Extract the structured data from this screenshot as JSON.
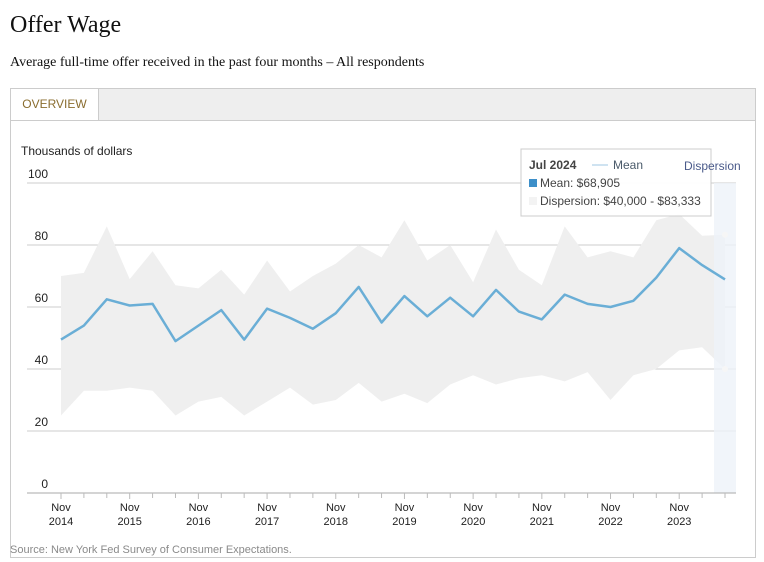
{
  "page": {
    "title": "Offer Wage",
    "subtitle": "Average full-time offer received in the past four months – All respondents",
    "tab_label": "OVERVIEW",
    "source": "Source: New York Fed Survey of Consumer Expectations."
  },
  "tooltip": {
    "date": "Jul 2024",
    "legend_mean": "Mean",
    "legend_dispersion": "Dispersion",
    "mean_text": "Mean: $68,905",
    "dispersion_text": "Dispersion: $40,000 - $83,333"
  },
  "colors": {
    "mean_line": "#6aaed6",
    "band_fill": "#efefef",
    "gridline": "#cccccc",
    "highlight": "#eef3f9"
  },
  "chart_data": {
    "type": "line",
    "title": "",
    "ylabel": "Thousands of dollars",
    "ylim": [
      0,
      100
    ],
    "yticks": [
      0,
      20,
      40,
      60,
      80,
      100
    ],
    "x_tick_labels": [
      [
        "Nov",
        "2014"
      ],
      [
        "Nov",
        "2015"
      ],
      [
        "Nov",
        "2016"
      ],
      [
        "Nov",
        "2017"
      ],
      [
        "Nov",
        "2018"
      ],
      [
        "Nov",
        "2019"
      ],
      [
        "Nov",
        "2020"
      ],
      [
        "Nov",
        "2021"
      ],
      [
        "Nov",
        "2022"
      ],
      [
        "Nov",
        "2023"
      ]
    ],
    "x": [
      "Nov 2014",
      "Mar 2015",
      "Jul 2015",
      "Nov 2015",
      "Mar 2016",
      "Jul 2016",
      "Nov 2016",
      "Mar 2017",
      "Jul 2017",
      "Nov 2017",
      "Mar 2018",
      "Jul 2018",
      "Nov 2018",
      "Mar 2019",
      "Jul 2019",
      "Nov 2019",
      "Mar 2020",
      "Jul 2020",
      "Nov 2020",
      "Mar 2021",
      "Jul 2021",
      "Nov 2021",
      "Mar 2022",
      "Jul 2022",
      "Nov 2022",
      "Mar 2023",
      "Jul 2023",
      "Nov 2023",
      "Mar 2024",
      "Jul 2024"
    ],
    "series": [
      {
        "name": "Mean",
        "values": [
          49.5,
          54,
          62.5,
          60.5,
          61,
          49,
          54,
          59,
          49.5,
          59.5,
          56.5,
          53,
          58,
          66.5,
          55,
          63.5,
          57,
          63,
          57,
          65.5,
          58.5,
          56,
          64,
          61,
          60,
          62,
          69.5,
          79,
          73.5,
          68.9
        ]
      },
      {
        "name": "Dispersion",
        "low": [
          25,
          33,
          33,
          34,
          33,
          25,
          29.5,
          31,
          25,
          29.5,
          34,
          28.5,
          30,
          35.5,
          29.5,
          32,
          29,
          35,
          38,
          35,
          37,
          38,
          36,
          39,
          30,
          38,
          40,
          46,
          47,
          40
        ],
        "high": [
          70,
          71,
          86,
          69,
          78,
          67,
          66,
          72,
          64,
          75,
          65,
          70,
          74,
          80,
          76,
          88,
          75,
          80,
          68,
          85,
          72,
          67,
          86,
          76,
          78,
          76,
          88,
          90,
          83,
          83.3
        ]
      }
    ],
    "highlight_x": "Jul 2024",
    "grid": true,
    "legend": "none"
  }
}
